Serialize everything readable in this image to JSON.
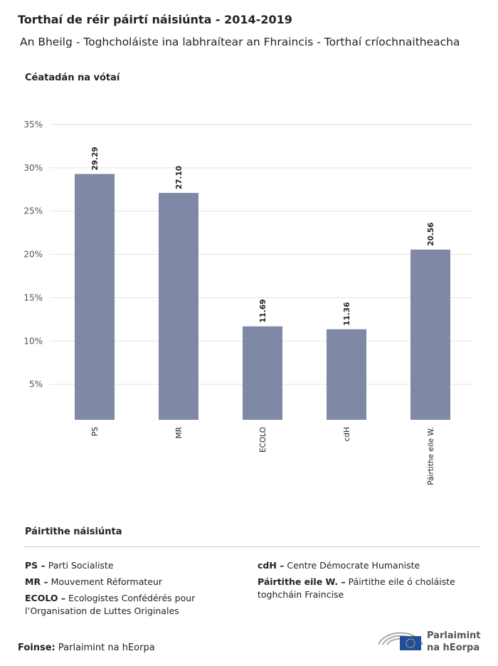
{
  "chart_data": {
    "type": "bar",
    "title": "Torthaí de réir páirtí náisiúnta - 2014-2019",
    "subtitle": "An Bheilg - Toghcholáiste ina labhraítear an Fhraincis - Torthaí críochnaitheacha",
    "y_label": "Céatadán na vótaí",
    "categories": [
      "PS",
      "MR",
      "ECOLO",
      "cdH",
      "Páirtithe eile W."
    ],
    "values": [
      29.29,
      27.1,
      11.69,
      11.36,
      20.56
    ],
    "value_labels": [
      "29.29",
      "27.10",
      "11.69",
      "11.36",
      "20.56"
    ],
    "color": "#7f89a5",
    "ylim": [
      0.9,
      35
    ],
    "yticks": [
      {
        "value": 5,
        "label": "5%"
      },
      {
        "value": 10,
        "label": "10%"
      },
      {
        "value": 15,
        "label": "15%"
      },
      {
        "value": 20,
        "label": "20%"
      },
      {
        "value": 25,
        "label": "25%"
      },
      {
        "value": 30,
        "label": "30%"
      },
      {
        "value": 35,
        "label": "35%"
      }
    ],
    "grid": true
  },
  "legend": {
    "title": "Páirtithe náisiúnta",
    "items": [
      {
        "abbr": "PS –",
        "text": "Parti Socialiste"
      },
      {
        "abbr": "MR –",
        "text": "Mouvement Réformateur"
      },
      {
        "abbr": "ECOLO –",
        "text": "Ecologistes Confédérés pour l’Organisation de Luttes Originales"
      },
      {
        "abbr": "cdH –",
        "text": "Centre Démocrate Humaniste"
      },
      {
        "abbr": "Páirtithe eile W. –",
        "text": "Páirtithe eile ó choláiste toghcháin Fraincise"
      }
    ]
  },
  "source": {
    "label": "Foinse:",
    "text": "Parlaimint na hEorpa"
  },
  "logo": [
    "Parlaimint",
    "na hEorpa"
  ]
}
